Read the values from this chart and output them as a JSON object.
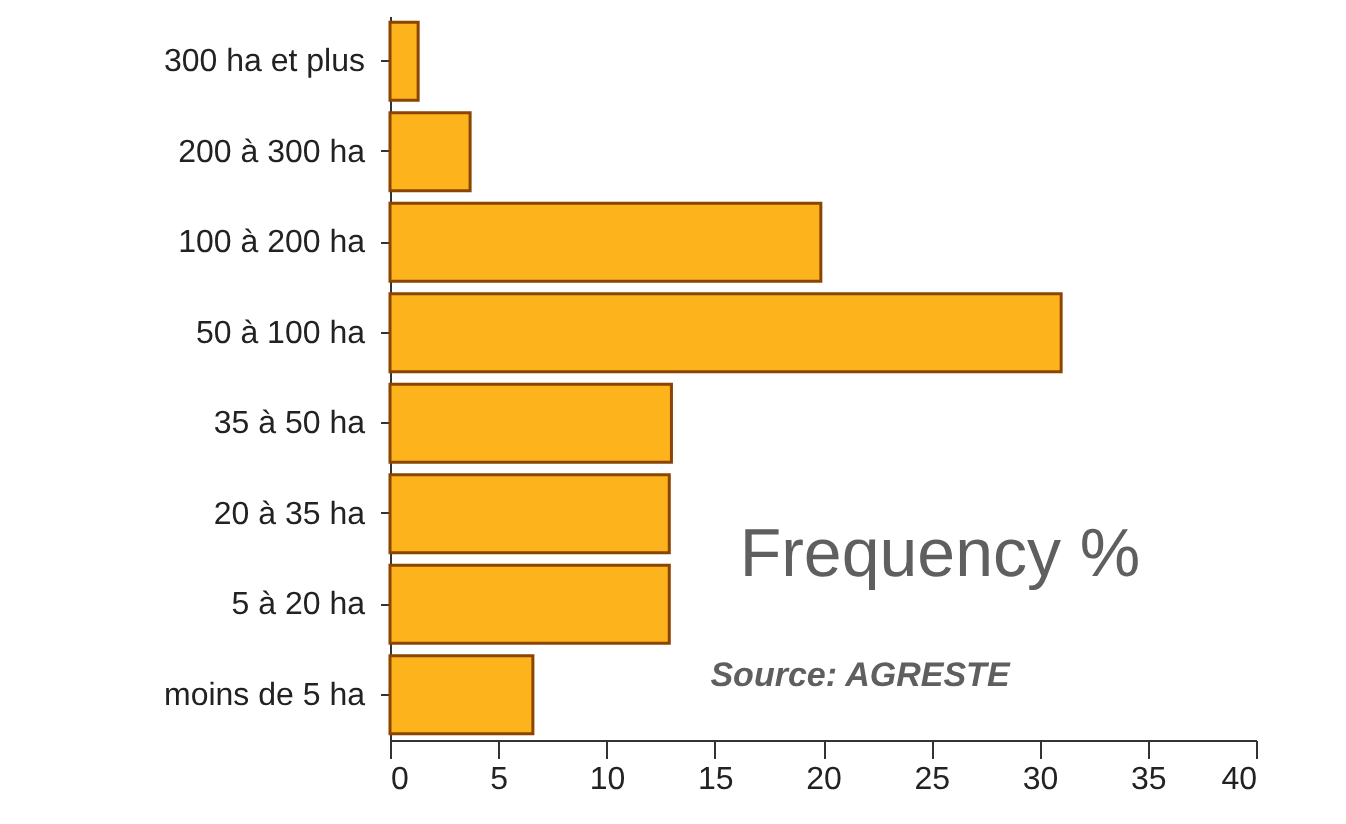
{
  "chart_data": {
    "type": "bar",
    "orientation": "horizontal",
    "categories": [
      "300 ha et plus",
      "200 à 300 ha",
      "100 à 200 ha",
      "50 à 100 ha",
      "35 à 50 ha",
      "20 à 35 ha",
      "5 à 20 ha",
      "moins de 5 ha"
    ],
    "values": [
      1.3,
      3.7,
      19.9,
      31,
      13,
      12.9,
      12.9,
      6.6
    ],
    "color": "#fcb31c",
    "xlim": [
      0,
      40
    ],
    "xticks": [
      0,
      5,
      10,
      15,
      20,
      25,
      30,
      35,
      40
    ],
    "annotations": [
      "Frequency %",
      "Source: AGRESTE"
    ],
    "grid": false
  }
}
